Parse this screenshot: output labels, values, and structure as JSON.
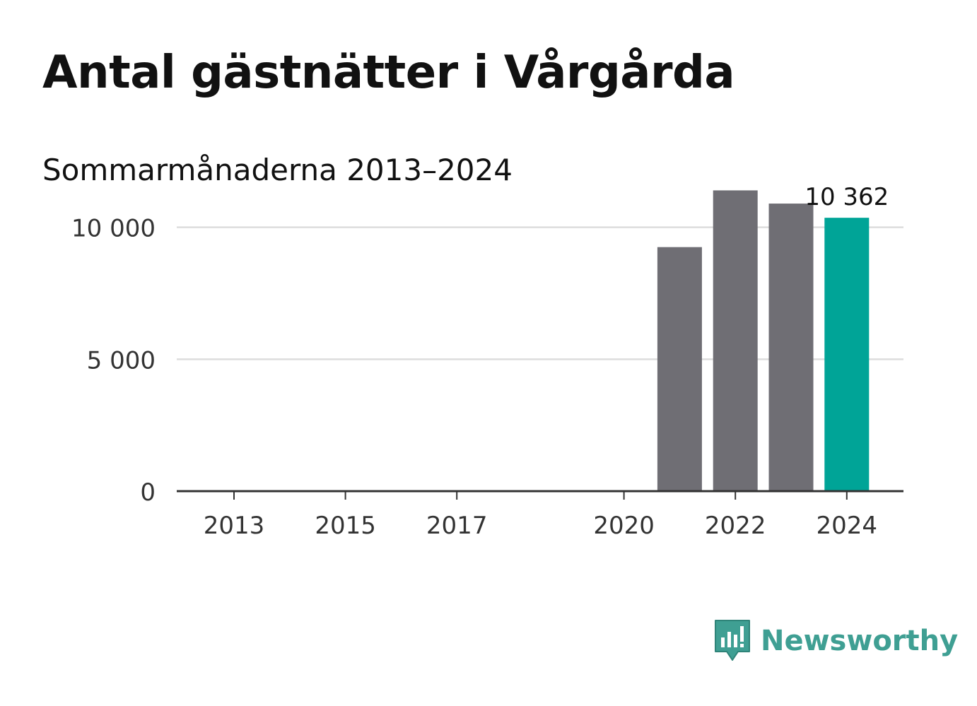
{
  "title": "Antal gästnätter i Vårgårda",
  "subtitle": "Sommarmånaderna 2013–2024",
  "brand": {
    "name": "Newsworthy",
    "color": "#3f9f93"
  },
  "colors": {
    "bar": "#6f6e74",
    "highlight": "#00a497",
    "grid": "#dddddd",
    "axis": "#333333"
  },
  "chart_data": {
    "type": "bar",
    "title": "Antal gästnätter i Vårgårda",
    "subtitle": "Sommarmånaderna 2013–2024",
    "x": [
      2013,
      2014,
      2015,
      2016,
      2017,
      2018,
      2019,
      2020,
      2021,
      2022,
      2023,
      2024
    ],
    "values": [
      null,
      null,
      null,
      null,
      null,
      null,
      null,
      null,
      9250,
      11400,
      10900,
      10362
    ],
    "x_ticks": [
      2013,
      2015,
      2017,
      2020,
      2022,
      2024
    ],
    "y_ticks": [
      0,
      5000,
      10000
    ],
    "y_tick_labels": [
      "0",
      "5 000",
      "10 000"
    ],
    "ylim": [
      0,
      12000
    ],
    "highlight": {
      "x": 2024,
      "label": "10 362"
    },
    "grid": true,
    "xlabel": "",
    "ylabel": ""
  }
}
